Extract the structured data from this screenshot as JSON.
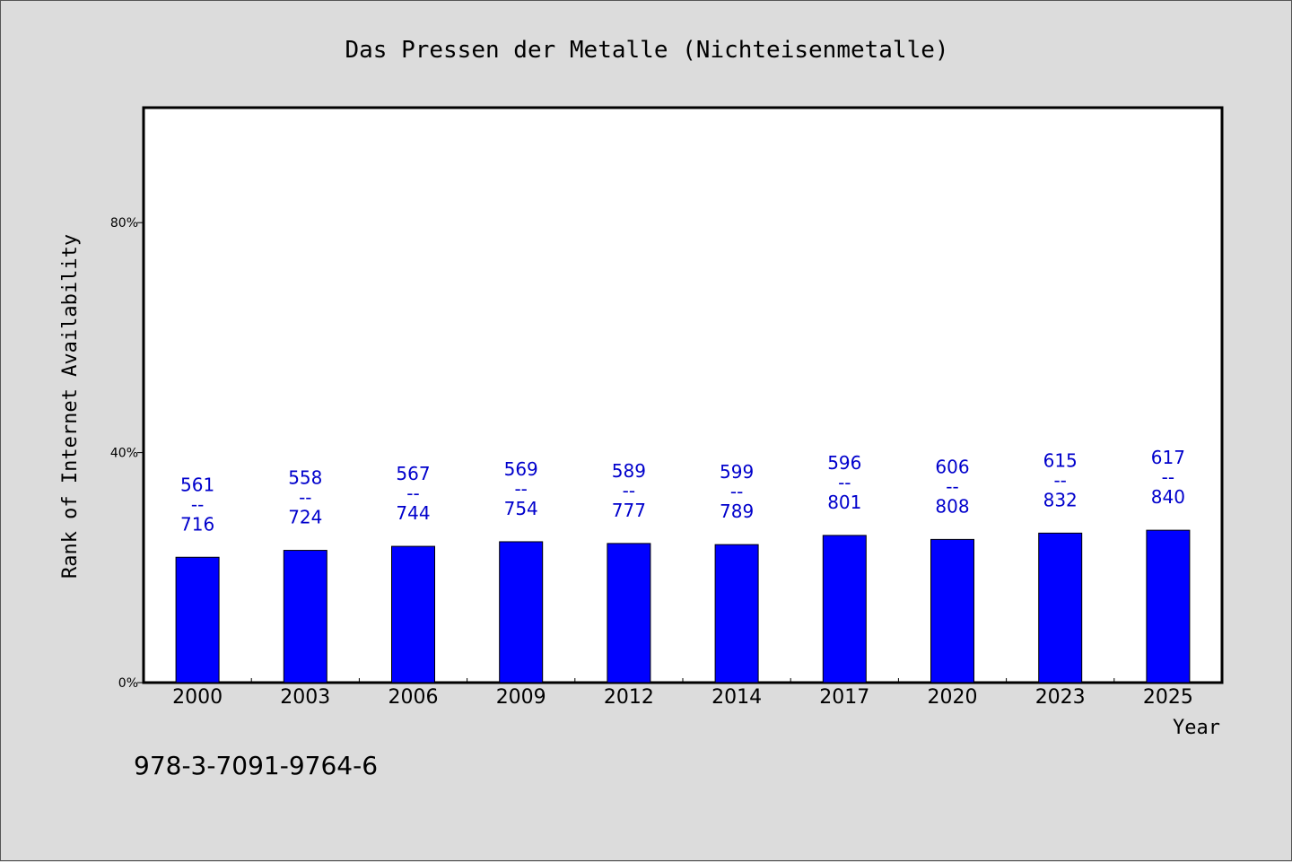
{
  "chart_data": {
    "type": "bar",
    "title": "Das Pressen der Metalle (Nichteisenmetalle)",
    "xlabel": "Year",
    "ylabel": "Rank of Internet Availability",
    "ylim": [
      0,
      100
    ],
    "yticks": [
      {
        "value": 0,
        "label": "0%"
      },
      {
        "value": 40,
        "label": "40%"
      },
      {
        "value": 80,
        "label": "80%"
      }
    ],
    "categories": [
      "2000",
      "2003",
      "2006",
      "2009",
      "2012",
      "2014",
      "2017",
      "2020",
      "2023",
      "2025"
    ],
    "values": [
      21.8,
      23.0,
      23.7,
      24.5,
      24.2,
      24.0,
      25.6,
      24.9,
      26.0,
      26.5
    ],
    "annotations": [
      {
        "top": "561",
        "sep": "--",
        "bottom": "716"
      },
      {
        "top": "558",
        "sep": "--",
        "bottom": "724"
      },
      {
        "top": "567",
        "sep": "--",
        "bottom": "744"
      },
      {
        "top": "569",
        "sep": "--",
        "bottom": "754"
      },
      {
        "top": "589",
        "sep": "--",
        "bottom": "777"
      },
      {
        "top": "599",
        "sep": "--",
        "bottom": "789"
      },
      {
        "top": "596",
        "sep": "--",
        "bottom": "801"
      },
      {
        "top": "606",
        "sep": "--",
        "bottom": "808"
      },
      {
        "top": "615",
        "sep": "--",
        "bottom": "832"
      },
      {
        "top": "617",
        "sep": "--",
        "bottom": "840"
      }
    ],
    "bar_color": "#0000ff",
    "label_color": "#0000cc",
    "grid": false,
    "legend": "none"
  },
  "footer": {
    "isbn": "978-3-7091-9764-6"
  }
}
